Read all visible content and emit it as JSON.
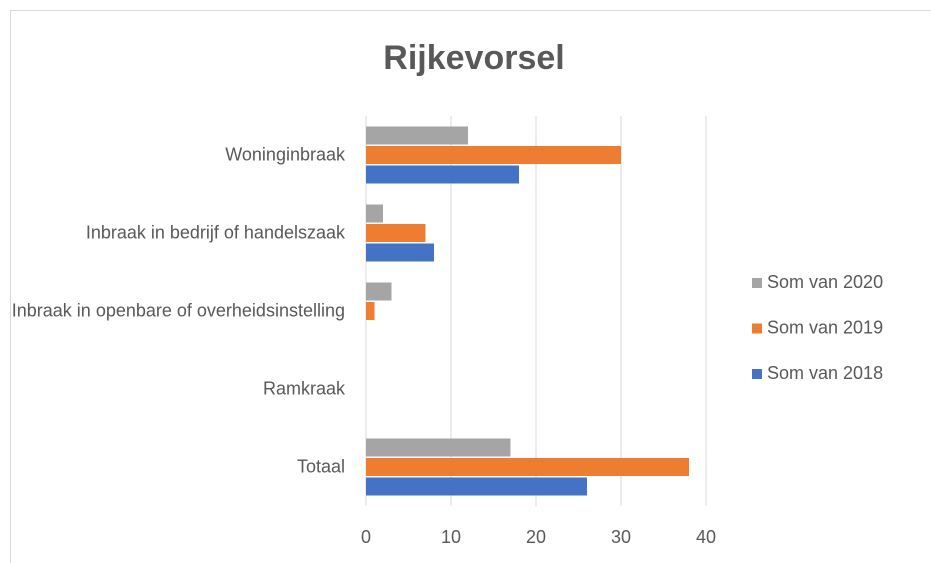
{
  "chart_data": {
    "type": "bar",
    "orientation": "horizontal",
    "title": "Rijkevorsel",
    "categories": [
      "Woninginbraak",
      "Inbraak in bedrijf of handelszaak",
      "Inbraak in openbare of overheidsinstelling",
      "Ramkraak",
      "Totaal"
    ],
    "series": [
      {
        "name": "Som van 2020",
        "color": "#a5a5a5",
        "values": [
          12,
          2,
          3,
          0,
          17
        ]
      },
      {
        "name": "Som van 2019",
        "color": "#ed7d31",
        "values": [
          30,
          7,
          1,
          0,
          38
        ]
      },
      {
        "name": "Som van 2018",
        "color": "#4472c4",
        "values": [
          18,
          8,
          0,
          0,
          26
        ]
      }
    ],
    "xlim": [
      0,
      40
    ],
    "xticks": [
      0,
      10,
      20,
      30,
      40
    ],
    "grid": true,
    "legend": "right"
  }
}
